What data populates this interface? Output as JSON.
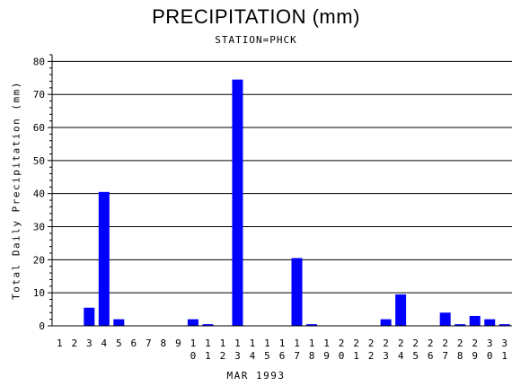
{
  "chart_data": {
    "type": "bar",
    "title": "PRECIPITATION (mm)",
    "subtitle": "STATION=PHCK",
    "xlabel": "MAR 1993",
    "ylabel": "Total Daily Precipitation (mm)",
    "ylim": [
      0,
      82
    ],
    "yticks": [
      0,
      10,
      20,
      30,
      40,
      50,
      60,
      70,
      80
    ],
    "grid": true,
    "color": "#0000ff",
    "categories": [
      "1",
      "2",
      "3",
      "4",
      "5",
      "6",
      "7",
      "8",
      "9",
      "10",
      "11",
      "12",
      "13",
      "14",
      "15",
      "16",
      "17",
      "18",
      "19",
      "20",
      "21",
      "22",
      "23",
      "24",
      "25",
      "26",
      "27",
      "28",
      "29",
      "30",
      "31"
    ],
    "values": [
      0,
      0,
      5.5,
      40.5,
      2,
      0,
      0,
      0,
      0,
      2,
      0.5,
      0,
      74.5,
      0,
      0,
      0,
      20.5,
      0.5,
      0,
      0,
      0,
      0,
      2,
      9.5,
      0,
      0,
      4,
      0.5,
      3,
      2,
      0.5
    ]
  }
}
